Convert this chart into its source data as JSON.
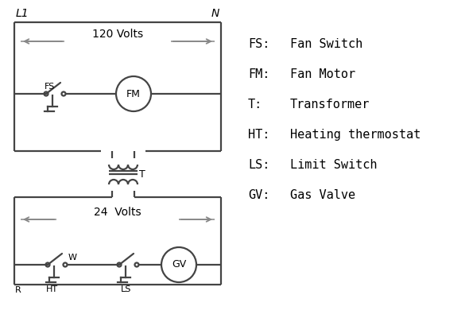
{
  "bg_color": "#ffffff",
  "line_color": "#444444",
  "text_color": "#000000",
  "legend": [
    [
      "FS:",
      "Fan Switch"
    ],
    [
      "FM:",
      "Fan Motor"
    ],
    [
      "T:",
      "Transformer"
    ],
    [
      "HT:",
      "Heating thermostat"
    ],
    [
      "LS:",
      "Limit Switch"
    ],
    [
      "GV:",
      "Gas Valve"
    ]
  ],
  "L1_label": "L1",
  "N_label": "N",
  "volts120_label": "120 Volts",
  "volts24_label": "24  Volts",
  "fs_label": "FS",
  "fm_label": "FM",
  "t_label": "T",
  "r_label": "R",
  "w_label": "W",
  "ht_label": "HT",
  "ls_label": "LS",
  "gv_label": "GV"
}
